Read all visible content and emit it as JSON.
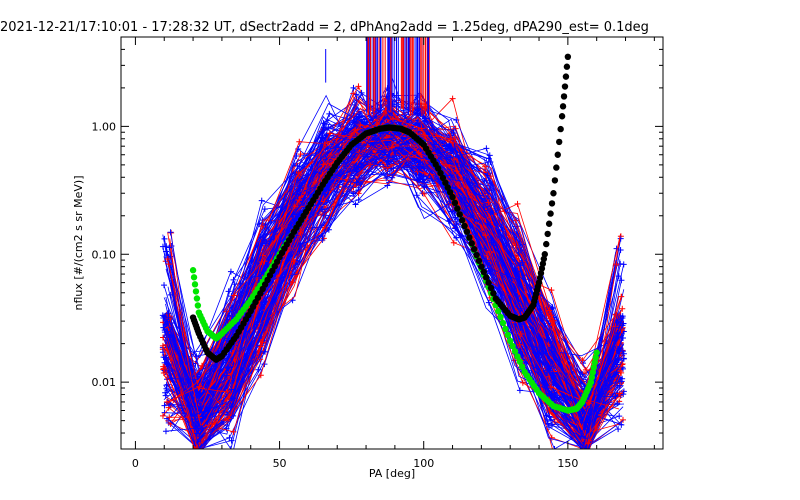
{
  "chart_data": {
    "type": "line",
    "title": "2021-12-21/17:10:01 - 17:28:32 UT, dSectr2add = 2, dPhAng2add = 1.25deg, dPA290_est=    0.1deg",
    "xlabel": "PA [deg]",
    "ylabel": "nflux [#/(cm2 s sr MeV)]",
    "xlim": [
      -5,
      183
    ],
    "ylim": [
      0.003,
      5
    ],
    "yscale": "log",
    "grid": false,
    "x_ticks": [
      0,
      50,
      100,
      150
    ],
    "x_tick_labels": [
      "0",
      "50",
      "100",
      "150"
    ],
    "y_ticks": [
      0.01,
      0.1,
      1.0
    ],
    "y_tick_labels": [
      "0.01",
      "0.10",
      "1.00"
    ],
    "colors": {
      "blue": "#0000ff",
      "red": "#ff0000",
      "green": "#00e600",
      "black": "#000000"
    },
    "series": [
      {
        "color": "#00e600",
        "marker": "dot",
        "x": [
          20,
          22,
          25,
          28,
          30,
          35,
          40,
          45,
          50,
          55,
          60,
          65,
          70,
          75,
          80,
          85,
          88,
          92,
          95,
          100,
          105,
          110,
          115,
          120,
          125,
          130,
          135,
          140,
          145,
          150,
          153,
          155,
          158,
          160
        ],
        "y": [
          0.075,
          0.035,
          0.025,
          0.022,
          0.024,
          0.031,
          0.044,
          0.065,
          0.1,
          0.15,
          0.23,
          0.35,
          0.52,
          0.72,
          0.88,
          0.96,
          0.98,
          0.96,
          0.9,
          0.72,
          0.47,
          0.28,
          0.15,
          0.077,
          0.04,
          0.021,
          0.012,
          0.0082,
          0.0065,
          0.006,
          0.0062,
          0.007,
          0.01,
          0.017
        ]
      },
      {
        "color": "#000000",
        "marker": "dot",
        "x": [
          20,
          22,
          25,
          28,
          30,
          35,
          40,
          45,
          50,
          55,
          60,
          65,
          70,
          75,
          80,
          85,
          88,
          92,
          95,
          100,
          105,
          110,
          115,
          120,
          125,
          130,
          133,
          135,
          138,
          140,
          142,
          145,
          148,
          150
        ],
        "y": [
          0.032,
          0.024,
          0.017,
          0.015,
          0.016,
          0.023,
          0.036,
          0.058,
          0.095,
          0.15,
          0.23,
          0.35,
          0.52,
          0.72,
          0.88,
          0.96,
          0.98,
          0.96,
          0.9,
          0.72,
          0.47,
          0.28,
          0.15,
          0.08,
          0.045,
          0.033,
          0.031,
          0.032,
          0.04,
          0.06,
          0.1,
          0.3,
          1.2,
          3.5
        ]
      }
    ]
  }
}
